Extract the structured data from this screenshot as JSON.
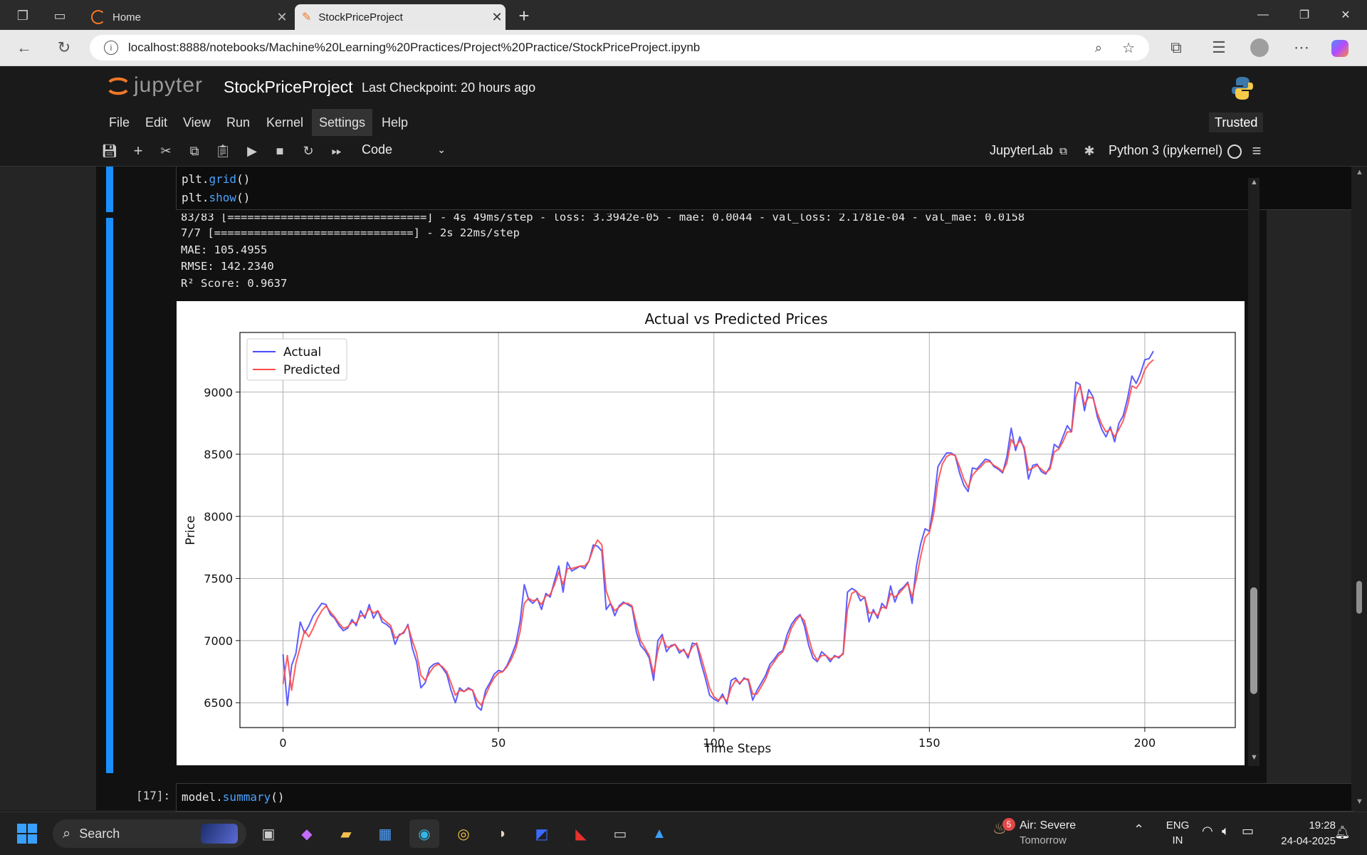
{
  "browser": {
    "tabs": [
      {
        "label": "Home",
        "active": false
      },
      {
        "label": "StockPriceProject",
        "active": true
      }
    ],
    "url": "localhost:8888/notebooks/Machine%20Learning%20Practices/Project%20Practice/StockPriceProject.ipynb"
  },
  "jupyter": {
    "logo_text": "jupyter",
    "notebook_name": "StockPriceProject",
    "checkpoint": "Last Checkpoint: 20 hours ago",
    "menu": [
      "File",
      "Edit",
      "View",
      "Run",
      "Kernel",
      "Settings",
      "Help"
    ],
    "trusted": "Trusted",
    "cell_type": "Code",
    "jupyterlab_link": "JupyterLab",
    "kernel": "Python 3 (ipykernel)"
  },
  "cell_code": {
    "lines": [
      {
        "obj": "plt.",
        "fn": "grid",
        "rest": "()"
      },
      {
        "obj": "plt.",
        "fn": "show",
        "rest": "()"
      }
    ]
  },
  "output": {
    "log1": "83/83 [==============================] - 4s 49ms/step - loss: 3.3942e-05 - mae: 0.0044 - val_loss: 2.1781e-04 - val_mae: 0.0158",
    "log2": "7/7 [==============================] - 2s 22ms/step",
    "mae": "MAE: 105.4955",
    "rmse": "RMSE: 142.2340",
    "r2": "R² Score: 0.9637"
  },
  "chart_data": {
    "type": "line",
    "title": "Actual vs Predicted Prices",
    "xlabel": "Time Steps",
    "ylabel": "Price",
    "xlim": [
      -10,
      221
    ],
    "ylim": [
      6300,
      9480
    ],
    "xticks": [
      0,
      50,
      100,
      150,
      200
    ],
    "yticks": [
      6500,
      7000,
      7500,
      8000,
      8500,
      9000
    ],
    "grid": true,
    "legend": "top-left",
    "series": [
      {
        "name": "Actual",
        "color": "#4b4bff",
        "values": [
          6890,
          6480,
          6800,
          6900,
          7150,
          7060,
          7120,
          7200,
          7250,
          7300,
          7290,
          7210,
          7180,
          7120,
          7080,
          7100,
          7170,
          7120,
          7240,
          7180,
          7290,
          7180,
          7240,
          7150,
          7130,
          7100,
          6970,
          7050,
          7060,
          7130,
          6940,
          6830,
          6620,
          6660,
          6780,
          6810,
          6820,
          6780,
          6730,
          6600,
          6500,
          6620,
          6590,
          6620,
          6600,
          6470,
          6440,
          6600,
          6660,
          6730,
          6760,
          6750,
          6800,
          6880,
          6970,
          7150,
          7450,
          7330,
          7300,
          7340,
          7250,
          7380,
          7350,
          7480,
          7600,
          7390,
          7630,
          7560,
          7580,
          7600,
          7580,
          7640,
          7770,
          7760,
          7720,
          7250,
          7300,
          7200,
          7280,
          7310,
          7290,
          7270,
          7070,
          6960,
          6920,
          6860,
          6680,
          7000,
          7050,
          6910,
          6960,
          6970,
          6900,
          6930,
          6860,
          6980,
          6970,
          6820,
          6700,
          6560,
          6530,
          6510,
          6570,
          6490,
          6680,
          6700,
          6650,
          6700,
          6680,
          6520,
          6600,
          6660,
          6720,
          6810,
          6850,
          6900,
          6920,
          7050,
          7130,
          7180,
          7210,
          7120,
          6960,
          6860,
          6830,
          6910,
          6880,
          6830,
          6880,
          6860,
          6900,
          7390,
          7420,
          7400,
          7320,
          7350,
          7150,
          7250,
          7180,
          7300,
          7260,
          7440,
          7310,
          7400,
          7430,
          7470,
          7300,
          7600,
          7780,
          7900,
          7880,
          8100,
          8400,
          8460,
          8510,
          8510,
          8490,
          8350,
          8250,
          8200,
          8390,
          8380,
          8420,
          8460,
          8450,
          8400,
          8380,
          8350,
          8480,
          8710,
          8530,
          8640,
          8540,
          8300,
          8410,
          8420,
          8360,
          8340,
          8400,
          8580,
          8550,
          8640,
          8730,
          8680,
          9080,
          9060,
          8850,
          9020,
          8960,
          8800,
          8700,
          8640,
          8720,
          8600,
          8750,
          8810,
          8950,
          9130,
          9070,
          9150,
          9260,
          9270,
          9330
        ]
      },
      {
        "name": "Predicted",
        "color": "#ff4b4b",
        "values": [
          6650,
          6880,
          6600,
          6820,
          6950,
          7080,
          7030,
          7100,
          7180,
          7240,
          7280,
          7230,
          7190,
          7140,
          7100,
          7110,
          7150,
          7140,
          7200,
          7200,
          7260,
          7220,
          7240,
          7180,
          7150,
          7120,
          7020,
          7040,
          7070,
          7120,
          7000,
          6900,
          6720,
          6680,
          6740,
          6790,
          6810,
          6790,
          6750,
          6660,
          6560,
          6600,
          6590,
          6610,
          6600,
          6520,
          6480,
          6560,
          6640,
          6700,
          6740,
          6750,
          6790,
          6850,
          6930,
          7070,
          7300,
          7340,
          7320,
          7330,
          7290,
          7360,
          7370,
          7450,
          7550,
          7450,
          7580,
          7580,
          7590,
          7600,
          7600,
          7640,
          7740,
          7810,
          7770,
          7400,
          7300,
          7240,
          7270,
          7300,
          7300,
          7280,
          7130,
          7000,
          6940,
          6880,
          6730,
          6920,
          7030,
          6950,
          6950,
          6970,
          6920,
          6920,
          6880,
          6950,
          6980,
          6870,
          6750,
          6620,
          6550,
          6520,
          6550,
          6510,
          6620,
          6680,
          6660,
          6690,
          6690,
          6570,
          6570,
          6630,
          6690,
          6780,
          6830,
          6880,
          6910,
          7000,
          7100,
          7160,
          7200,
          7160,
          7020,
          6900,
          6840,
          6880,
          6880,
          6850,
          6870,
          6870,
          6890,
          7250,
          7380,
          7400,
          7360,
          7350,
          7220,
          7230,
          7200,
          7270,
          7260,
          7380,
          7350,
          7380,
          7420,
          7460,
          7350,
          7500,
          7680,
          7830,
          7870,
          8020,
          8280,
          8420,
          8480,
          8500,
          8490,
          8400,
          8300,
          8230,
          8330,
          8370,
          8400,
          8440,
          8440,
          8410,
          8390,
          8360,
          8430,
          8620,
          8560,
          8610,
          8560,
          8370,
          8390,
          8410,
          8380,
          8350,
          8380,
          8520,
          8540,
          8600,
          8680,
          8680,
          8960,
          9050,
          8900,
          8960,
          8950,
          8830,
          8740,
          8680,
          8700,
          8640,
          8700,
          8770,
          8890,
          9050,
          9030,
          9080,
          9180,
          9230,
          9260
        ]
      }
    ]
  },
  "next_cell": {
    "prompt": "[17]:",
    "obj": "model.",
    "fn": "summary",
    "rest": "()"
  },
  "taskbar": {
    "search_label": "Search",
    "weather_badge": "5",
    "weather_title": "Air: Severe",
    "weather_sub": "Tomorrow",
    "lang_top": "ENG",
    "lang_bottom": "IN",
    "time": "19:28",
    "date": "24-04-2025"
  }
}
